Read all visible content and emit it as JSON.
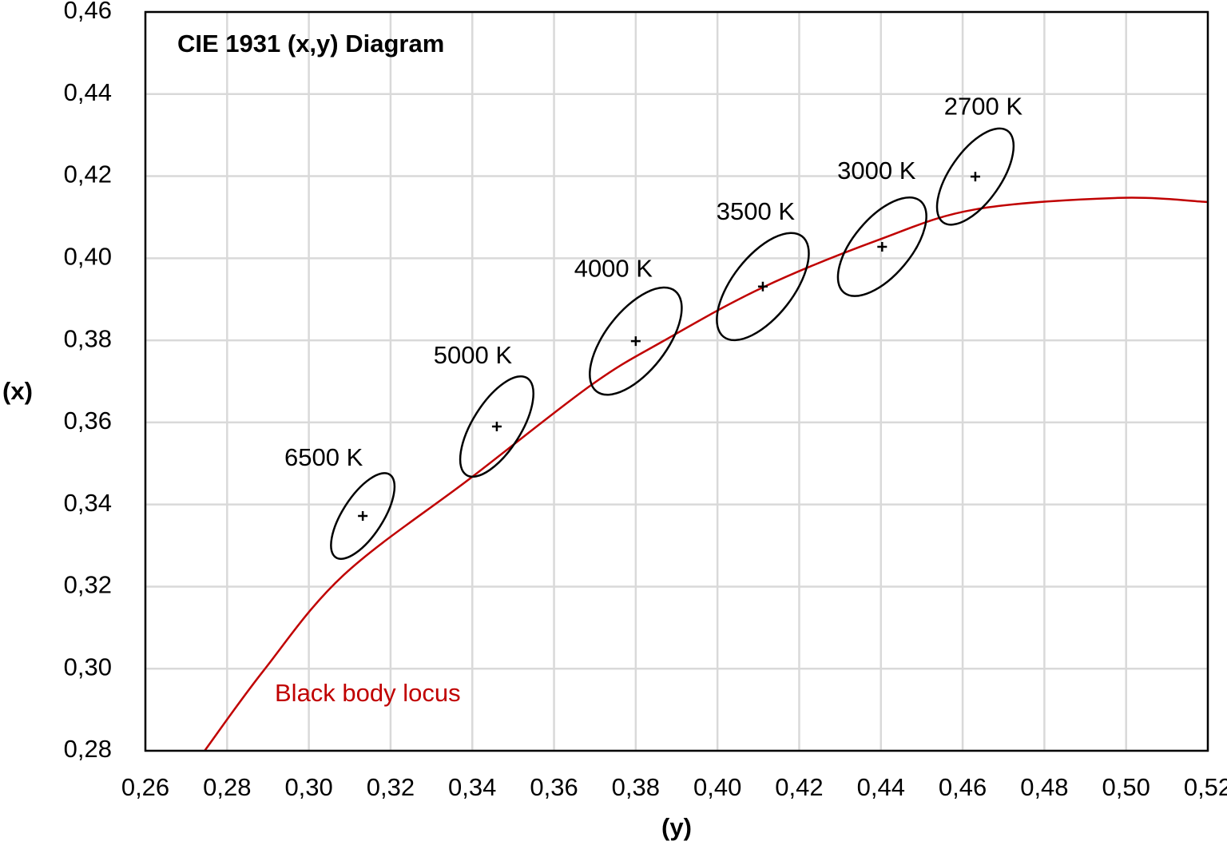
{
  "chart_data": {
    "type": "scatter",
    "title": "CIE 1931 (x,y) Diagram",
    "xlabel": "(y)",
    "ylabel": "(x)",
    "xlim": [
      0.26,
      0.52
    ],
    "ylim": [
      0.28,
      0.46
    ],
    "xticks": [
      {
        "value": 0.26,
        "label": "0,26"
      },
      {
        "value": 0.28,
        "label": "0,28"
      },
      {
        "value": 0.3,
        "label": "0,30"
      },
      {
        "value": 0.32,
        "label": "0,32"
      },
      {
        "value": 0.34,
        "label": "0,34"
      },
      {
        "value": 0.36,
        "label": "0,36"
      },
      {
        "value": 0.38,
        "label": "0,38"
      },
      {
        "value": 0.4,
        "label": "0,40"
      },
      {
        "value": 0.42,
        "label": "0,42"
      },
      {
        "value": 0.44,
        "label": "0,44"
      },
      {
        "value": 0.46,
        "label": "0,46"
      },
      {
        "value": 0.48,
        "label": "0,48"
      },
      {
        "value": 0.5,
        "label": "0,50"
      },
      {
        "value": 0.52,
        "label": "0,52"
      }
    ],
    "yticks": [
      {
        "value": 0.28,
        "label": "0,28"
      },
      {
        "value": 0.3,
        "label": "0,30"
      },
      {
        "value": 0.32,
        "label": "0,32"
      },
      {
        "value": 0.34,
        "label": "0,34"
      },
      {
        "value": 0.36,
        "label": "0,36"
      },
      {
        "value": 0.38,
        "label": "0,38"
      },
      {
        "value": 0.4,
        "label": "0,40"
      },
      {
        "value": 0.42,
        "label": "0,42"
      },
      {
        "value": 0.44,
        "label": "0,44"
      },
      {
        "value": 0.46,
        "label": "0,46"
      }
    ],
    "grid": true,
    "series": [
      {
        "name": "Black body locus",
        "type": "line",
        "color": "#c00000",
        "x": [
          0.2745,
          0.2889,
          0.3085,
          0.3398,
          0.3691,
          0.3867,
          0.4111,
          0.4395,
          0.4631,
          0.4981,
          0.52
        ],
        "y": [
          0.28,
          0.2995,
          0.3228,
          0.3466,
          0.3691,
          0.3798,
          0.3929,
          0.4045,
          0.4119,
          0.4147,
          0.4137
        ]
      },
      {
        "type": "ellipse",
        "color": "#000000",
        "labels": [
          "6500 K",
          "5000 K",
          "4000 K",
          "3500 K",
          "3000 K",
          "2700 K"
        ],
        "x": [
          0.3132,
          0.346,
          0.38,
          0.4111,
          0.4403,
          0.4631
        ],
        "y": [
          0.3372,
          0.359,
          0.3798,
          0.3931,
          0.4028,
          0.4199
        ],
        "ellipse_a": [
          0.0121,
          0.014,
          0.0156,
          0.0156,
          0.0146,
          0.0137
        ],
        "ellipse_b": [
          0.0049,
          0.0059,
          0.0074,
          0.0074,
          0.007,
          0.0062
        ],
        "ellipse_angle": [
          57,
          58,
          52,
          52,
          50,
          55
        ]
      }
    ]
  }
}
